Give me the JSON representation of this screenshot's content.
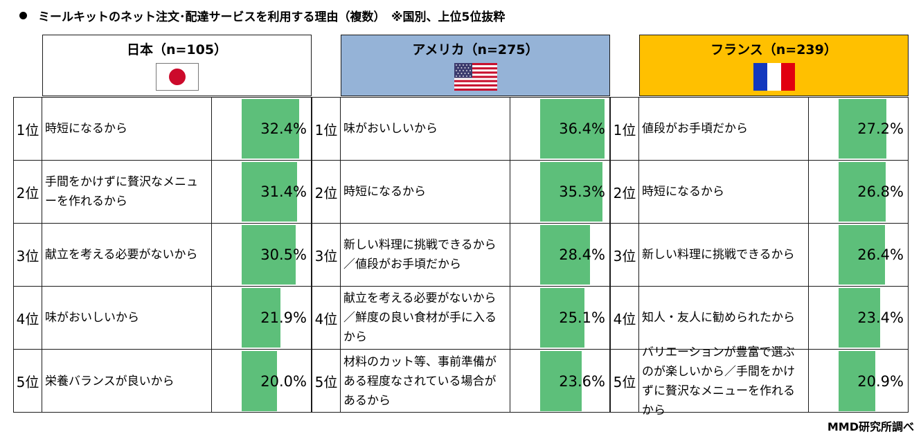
{
  "title": "ミールキットのネット注文･配達サービスを利用する理由（複数）　※国別、上位5位抜粋",
  "source": "MMD研究所調べ",
  "colors": {
    "bar": "#5dbf7a",
    "japan_header": "#ffffff",
    "usa_header": "#95b3d7",
    "france_header": "#ffc000"
  },
  "chart_data": {
    "type": "bar",
    "title": "ミールキットのネット注文･配達サービスを利用する理由（複数）　※国別、上位5位抜粋",
    "unit": "%",
    "xlim": [
      0,
      100
    ],
    "groups": [
      {
        "country": "日本（n=105）",
        "flag_icon": "japan-flag-icon",
        "rows": [
          {
            "rank": "1位",
            "reason": "時短になるから",
            "value": 32.4,
            "label": "32.4%"
          },
          {
            "rank": "2位",
            "reason": "手間をかけずに贅沢なメニューを作れるから",
            "value": 31.4,
            "label": "31.4%"
          },
          {
            "rank": "3位",
            "reason": "献立を考える必要がないから",
            "value": 30.5,
            "label": "30.5%"
          },
          {
            "rank": "4位",
            "reason": "味がおいしいから",
            "value": 21.9,
            "label": "21.9%"
          },
          {
            "rank": "5位",
            "reason": "栄養バランスが良いから",
            "value": 20.0,
            "label": "20.0%"
          }
        ]
      },
      {
        "country": "アメリカ（n=275）",
        "flag_icon": "usa-flag-icon",
        "rows": [
          {
            "rank": "1位",
            "reason": "味がおいしいから",
            "value": 36.4,
            "label": "36.4%"
          },
          {
            "rank": "2位",
            "reason": "時短になるから",
            "value": 35.3,
            "label": "35.3%"
          },
          {
            "rank": "3位",
            "reason": "新しい料理に挑戦できるから／値段がお手頃だから",
            "value": 28.4,
            "label": "28.4%"
          },
          {
            "rank": "4位",
            "reason": "献立を考える必要がないから／鮮度の良い食材が手に入るから",
            "value": 25.1,
            "label": "25.1%"
          },
          {
            "rank": "5位",
            "reason": "材料のカット等、事前準備がある程度なされている場合があるから",
            "value": 23.6,
            "label": "23.6%"
          }
        ]
      },
      {
        "country": "フランス（n=239）",
        "flag_icon": "france-flag-icon",
        "rows": [
          {
            "rank": "1位",
            "reason": "値段がお手頃だから",
            "value": 27.2,
            "label": "27.2%"
          },
          {
            "rank": "2位",
            "reason": "時短になるから",
            "value": 26.8,
            "label": "26.8%"
          },
          {
            "rank": "3位",
            "reason": "新しい料理に挑戦できるから",
            "value": 26.4,
            "label": "26.4%"
          },
          {
            "rank": "4位",
            "reason": "知人・友人に勧められたから",
            "value": 23.4,
            "label": "23.4%"
          },
          {
            "rank": "5位",
            "reason": "バリエーションが豊富で選ぶのが楽しいから／手間をかけずに贅沢なメニューを作れるから",
            "value": 20.9,
            "label": "20.9%"
          }
        ]
      }
    ]
  }
}
